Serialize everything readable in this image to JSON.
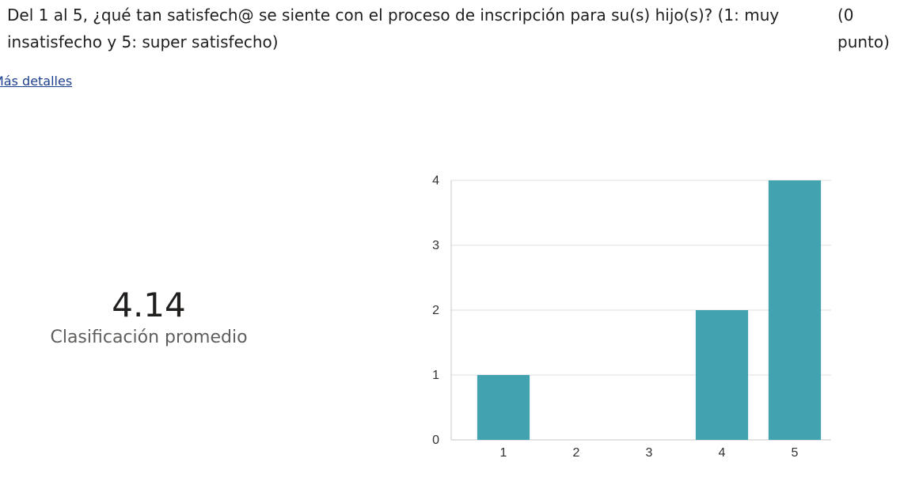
{
  "question": {
    "text": "Del 1 al 5, ¿qué tan satisfech@ se siente con el proceso de inscripción para su(s) hijo(s)? (1: muy insatisfecho y 5: super satisfecho)",
    "points": "(0 punto)"
  },
  "details_link": "Más detalles",
  "summary": {
    "average": "4.14",
    "average_label": "Clasificación promedio"
  },
  "colors": {
    "bar": "#42a2b0",
    "grid": "#e1dfdd",
    "axis": "#c8c6c4"
  },
  "chart_data": {
    "type": "bar",
    "categories": [
      "1",
      "2",
      "3",
      "4",
      "5"
    ],
    "values": [
      1,
      0,
      0,
      2,
      4
    ],
    "ylim": [
      0,
      4
    ],
    "yticks": [
      0,
      1,
      2,
      3,
      4
    ],
    "grid": true,
    "title": "",
    "xlabel": "",
    "ylabel": ""
  }
}
